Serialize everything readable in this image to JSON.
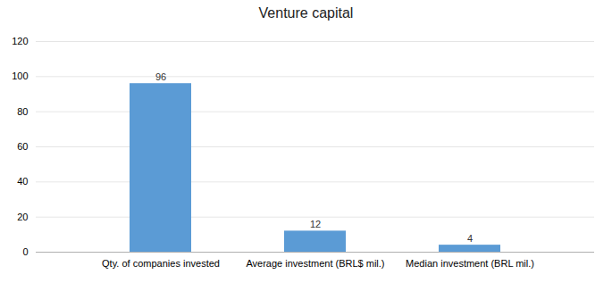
{
  "chart_data": {
    "type": "bar",
    "title": "Venture capital",
    "categories": [
      "Qty. of companies invested",
      "Average investment (BRL$ mil.)",
      "Median investment (BRL mil.)"
    ],
    "values": [
      96,
      12,
      4
    ],
    "color": "#5b9bd5",
    "ylim": [
      0,
      120
    ],
    "yticks": [
      0,
      20,
      40,
      60,
      80,
      100,
      120
    ],
    "grid": true,
    "data_labels": true
  }
}
